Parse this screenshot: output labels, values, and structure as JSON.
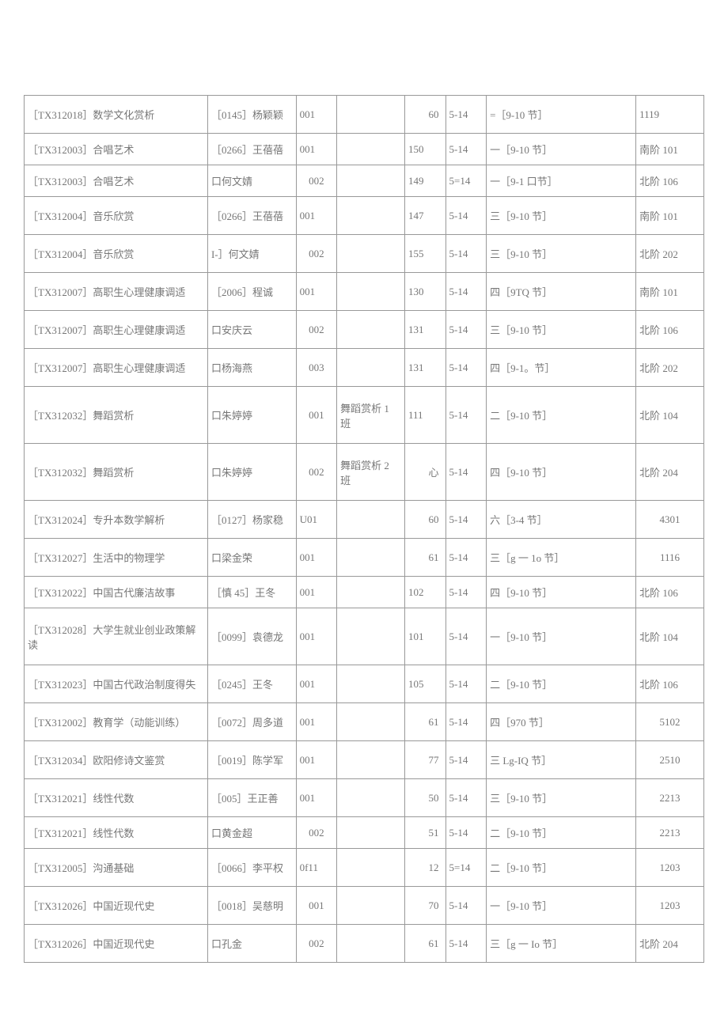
{
  "table": {
    "border_color": "#999999",
    "text_color": "#777777",
    "background_color": "#ffffff",
    "font_size": 13,
    "rows": [
      {
        "course": "［TX312018］数学文化赏析",
        "teacher": "［0145］杨颖颖",
        "section": "001",
        "class": "",
        "num": "60",
        "week": "5-14",
        "time": "=［9-10 节］",
        "room": "1119",
        "h": "med",
        "num_align": "right",
        "room_align": "left"
      },
      {
        "course": "［TX312003］合唱艺术",
        "teacher": "［0266］王蓓蓓",
        "section": "001",
        "class": "",
        "num": "150",
        "week": "5-14",
        "time": "一［9-10 节］",
        "room": "南阶 101",
        "h": "short",
        "num_align": "left",
        "room_align": "left"
      },
      {
        "course": "［TX312003］合唱艺术",
        "teacher": "口何文婧",
        "section": "002",
        "class": "",
        "num": "149",
        "week": "5=14",
        "time": "一［9-1 口节］",
        "room": "北阶 106",
        "h": "short",
        "num_align": "left",
        "room_align": "left",
        "sec_align": "center"
      },
      {
        "course": "［TX312004］音乐欣赏",
        "teacher": "［0266］王蓓蓓",
        "section": "001",
        "class": "",
        "num": "147",
        "week": "5-14",
        "time": "三［9-10 节］",
        "room": "南阶 101",
        "h": "med",
        "num_align": "left",
        "room_align": "left"
      },
      {
        "course": "［TX312004］音乐欣赏",
        "teacher": "I-］何文婧",
        "section": "002",
        "class": "",
        "num": "155",
        "week": "5-14",
        "time": "三［9-10 节］",
        "room": "北阶 202",
        "h": "med",
        "num_align": "left",
        "room_align": "left",
        "sec_align": "center"
      },
      {
        "course": "［TX312007］高职生心理健康调适",
        "teacher": "［2006］程诚",
        "section": "001",
        "class": "",
        "num": "130",
        "week": "5-14",
        "time": "四［9TQ 节］",
        "room": "南阶 101",
        "h": "med",
        "num_align": "left",
        "room_align": "left"
      },
      {
        "course": "［TX312007］高职生心理健康调适",
        "teacher": "口安庆云",
        "section": "002",
        "class": "",
        "num": "131",
        "week": "5-14",
        "time": "三［9-10 节］",
        "room": "北阶 106",
        "h": "med",
        "num_align": "left",
        "room_align": "left",
        "sec_align": "center"
      },
      {
        "course": "［TX312007］高职生心理健康调适",
        "teacher": "口杨海燕",
        "section": "003",
        "class": "",
        "num": "131",
        "week": "5-14",
        "time": "四［9-1。节］",
        "room": "北阶 202",
        "h": "med",
        "num_align": "left",
        "room_align": "left",
        "sec_align": "center"
      },
      {
        "course": "［TX312032］舞蹈赏析",
        "teacher": "口朱婷婷",
        "section": "001",
        "class": "舞蹈赏析 1 班",
        "num": "111",
        "week": "5-14",
        "time": "二［9-10 节］",
        "room": "北阶 104",
        "h": "tall",
        "num_align": "left",
        "room_align": "left",
        "sec_align": "center"
      },
      {
        "course": "［TX312032］舞蹈赏析",
        "teacher": "口朱婷婷",
        "section": "002",
        "class": "舞蹈赏析 2 班",
        "num": "心",
        "week": "5-14",
        "time": "四［9-10 节］",
        "room": "北阶 204",
        "h": "tall",
        "num_align": "right",
        "room_align": "left",
        "sec_align": "center"
      },
      {
        "course": "［TX312024］专升本数学解析",
        "teacher": "［0127］杨家稳",
        "section": "U01",
        "class": "",
        "num": "60",
        "week": "5-14",
        "time": "六［3-4 节］",
        "room": "4301",
        "h": "med",
        "num_align": "right",
        "room_align": "center"
      },
      {
        "course": "［TX312027］生活中的物理学",
        "teacher": "口梁金荣",
        "section": "001",
        "class": "",
        "num": "61",
        "week": "5-14",
        "time": "三［g 一 1o 节］",
        "room": "1116",
        "h": "med",
        "num_align": "right",
        "room_align": "center"
      },
      {
        "course": "［TX312022］中国古代廉洁故事",
        "teacher": "［慎 45］王冬",
        "section": "001",
        "class": "",
        "num": "102",
        "week": "5-14",
        "time": "四［9-10 节］",
        "room": "北阶 106",
        "h": "short",
        "num_align": "left",
        "room_align": "left"
      },
      {
        "course": "［TX312028］大学生就业创业政策解读",
        "teacher": "［0099］袁德龙",
        "section": "001",
        "class": "",
        "num": "101",
        "week": "5-14",
        "time": "一［9-10 节］",
        "room": "北阶 104",
        "h": "tall",
        "num_align": "left",
        "room_align": "left"
      },
      {
        "course": "［TX312023］中国古代政治制度得失",
        "teacher": "［0245］王冬",
        "section": "001",
        "class": "",
        "num": "105",
        "week": "5-14",
        "time": "二［9-10 节］",
        "room": "北阶 106",
        "h": "med",
        "num_align": "left",
        "room_align": "left"
      },
      {
        "course": "［TX312002］教育学（动能训练）",
        "teacher": "［0072］周多道",
        "section": "001",
        "class": "",
        "num": "61",
        "week": "5-14",
        "time": "四［970 节］",
        "room": "5102",
        "h": "med",
        "num_align": "right",
        "room_align": "center"
      },
      {
        "course": "［TX312034］欧阳修诗文鉴赏",
        "teacher": "［0019］陈学军",
        "section": "001",
        "class": "",
        "num": "77",
        "week": "5-14",
        "time": "三 Lg-IQ 节］",
        "room": "2510",
        "h": "med",
        "num_align": "right",
        "room_align": "center"
      },
      {
        "course": "［TX312021］线性代数",
        "teacher": "［005］王正善",
        "section": "001",
        "class": "",
        "num": "50",
        "week": "5-14",
        "time": "三［9-10 节］",
        "room": "2213",
        "h": "med",
        "num_align": "right",
        "room_align": "center"
      },
      {
        "course": "［TX312021］线性代数",
        "teacher": "口黄金超",
        "section": "002",
        "class": "",
        "num": "51",
        "week": "5-14",
        "time": "二［9-10 节］",
        "room": "2213",
        "h": "short",
        "num_align": "right",
        "room_align": "center",
        "sec_align": "center"
      },
      {
        "course": "［TX312005］沟通基础",
        "teacher": "［0066］李平权",
        "section": "0f11",
        "class": "",
        "num": "12",
        "week": "5=14",
        "time": "二［9-10 节］",
        "room": "1203",
        "h": "med",
        "num_align": "right",
        "room_align": "center"
      },
      {
        "course": "［TX312026］中国近现代史",
        "teacher": "［0018］吴慈明",
        "section": "001",
        "class": "",
        "num": "70",
        "week": "5-14",
        "time": "一［9-10 节］",
        "room": "1203",
        "h": "med",
        "num_align": "right",
        "room_align": "center",
        "sec_align": "center"
      },
      {
        "course": "［TX312026］中国近现代史",
        "teacher": "口孔金",
        "section": "002",
        "class": "",
        "num": "61",
        "week": "5-14",
        "time": "三［g 一 Io 节］",
        "room": "北阶 204",
        "h": "med",
        "num_align": "right",
        "room_align": "left",
        "sec_align": "center"
      }
    ]
  }
}
